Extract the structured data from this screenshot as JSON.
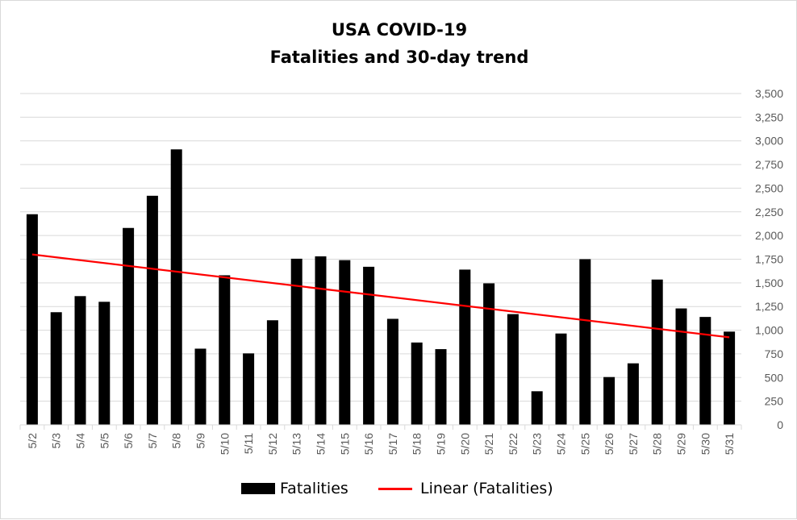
{
  "chart_data": {
    "type": "bar",
    "title": "USA COVID-19",
    "subtitle": "Fatalities and 30-day trend",
    "categories": [
      "5/2",
      "5/3",
      "5/4",
      "5/5",
      "5/6",
      "5/7",
      "5/8",
      "5/9",
      "5/10",
      "5/11",
      "5/12",
      "5/13",
      "5/14",
      "5/15",
      "5/16",
      "5/17",
      "5/18",
      "5/19",
      "5/20",
      "5/21",
      "5/22",
      "5/23",
      "5/24",
      "5/25",
      "5/26",
      "5/27",
      "5/28",
      "5/29",
      "5/30",
      "5/31"
    ],
    "series": [
      {
        "name": "Fatalities",
        "color": "#000000",
        "values": [
          2225,
          1190,
          1360,
          1300,
          2080,
          2420,
          2910,
          805,
          1580,
          755,
          1105,
          1755,
          1780,
          1740,
          1670,
          1120,
          870,
          800,
          1640,
          1495,
          1170,
          355,
          965,
          1750,
          505,
          650,
          1535,
          1230,
          1140,
          985
        ]
      }
    ],
    "trendline": {
      "name": "Linear (Fatalities)",
      "color": "#ff0000",
      "start": 1800,
      "end": 925
    },
    "y_axis": {
      "position": "right",
      "ylim": [
        0,
        3500
      ],
      "ticks": [
        "0",
        "250",
        "500",
        "750",
        "1,000",
        "1,250",
        "1,500",
        "1,750",
        "2,000",
        "2,250",
        "2,500",
        "2,750",
        "3,000",
        "3,250",
        "3,500"
      ]
    },
    "grid": true,
    "legend": "bottom"
  }
}
